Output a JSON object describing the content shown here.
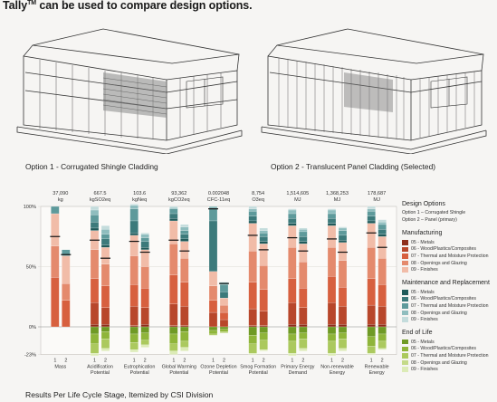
{
  "headline": {
    "brand": "Tally",
    "tm": "TM",
    "rest": " can be used to compare design options."
  },
  "options": {
    "option1_caption": "Option 1 - Corrugated Shingle Cladding",
    "option2_caption": "Option 2 - Translucent Panel Cladding (Selected)"
  },
  "footer_caption": "Results Per Life Cycle Stage, Itemized by CSI Division",
  "legend": {
    "design_title": "Design Options",
    "design_items": [
      "Option 1 – Corrugated Shingle",
      "Option 2 – Panel (primary)"
    ],
    "groups": [
      {
        "title": "Manufacturing",
        "items": [
          {
            "label": "05 - Metals",
            "color": "#8e2f1b"
          },
          {
            "label": "06 - Wood/Plastics/Composites",
            "color": "#b8472b"
          },
          {
            "label": "07 - Thermal and Moisture Protection",
            "color": "#d7603f"
          },
          {
            "label": "08 - Openings and Glazing",
            "color": "#e48a6d"
          },
          {
            "label": "09 - Finishes",
            "color": "#f1bca8"
          }
        ]
      },
      {
        "title": "Maintenance and Replacement",
        "items": [
          {
            "label": "05 - Metals",
            "color": "#1f5a5a"
          },
          {
            "label": "06 - Wood/Plastics/Composites",
            "color": "#3c7a7b"
          },
          {
            "label": "07 - Thermal and Moisture Protection",
            "color": "#5e9a9b"
          },
          {
            "label": "08 - Openings and Glazing",
            "color": "#8fbdbe"
          },
          {
            "label": "09 - Finishes",
            "color": "#c4dcdc"
          }
        ]
      },
      {
        "title": "End of Life",
        "items": [
          {
            "label": "05 - Metals",
            "color": "#6f9a25"
          },
          {
            "label": "06 - Wood/Plastics/Composites",
            "color": "#8fb53a"
          },
          {
            "label": "07 - Thermal and Moisture Protection",
            "color": "#abc95e"
          },
          {
            "label": "08 - Openings and Glazing",
            "color": "#c4da88"
          },
          {
            "label": "09 - Finishes",
            "color": "#dcebb6"
          }
        ]
      }
    ]
  },
  "chart_data": {
    "type": "bar",
    "stacked": true,
    "y_tick_labels": [
      "100%",
      "50%",
      "0%",
      "-23%"
    ],
    "ylim": [
      -23,
      100
    ],
    "categories": [
      {
        "name": [
          "Mass"
        ],
        "total": "37,090",
        "unit": "kg",
        "o1": {
          "m": [
            0,
            0,
            41,
            26,
            27
          ],
          "mr": [
            0,
            0,
            6,
            0,
            0
          ],
          "e": [
            0,
            0,
            0,
            0,
            0
          ]
        },
        "o2": {
          "m": [
            0,
            0,
            22,
            14,
            23
          ],
          "mr": [
            0,
            0,
            5,
            0,
            0
          ],
          "e": [
            0,
            0,
            0,
            0,
            0
          ]
        },
        "m1": 75,
        "m2": 60
      },
      {
        "name": [
          "Acidification",
          "Potential"
        ],
        "total": "667.5",
        "unit": "kgSO2eq",
        "o1": {
          "m": [
            2,
            18,
            20,
            24,
            16
          ],
          "mr": [
            2,
            5,
            6,
            4,
            3
          ],
          "e": [
            -6,
            -8,
            -8,
            0,
            -2
          ]
        },
        "o2": {
          "m": [
            2,
            14,
            18,
            18,
            14
          ],
          "mr": [
            2,
            5,
            4,
            4,
            3
          ],
          "e": [
            -4,
            -6,
            -8,
            0,
            -2
          ]
        },
        "m1": 72,
        "m2": 57
      },
      {
        "name": [
          "Eutrophication",
          "Potential"
        ],
        "total": "103.6",
        "unit": "kgNeq",
        "o1": {
          "m": [
            1,
            16,
            18,
            24,
            17
          ],
          "mr": [
            2,
            10,
            10,
            3,
            1
          ],
          "e": [
            -6,
            -7,
            -6,
            0,
            -2
          ]
        },
        "o2": {
          "m": [
            2,
            14,
            16,
            18,
            14
          ],
          "mr": [
            2,
            5,
            3,
            3,
            1
          ],
          "e": [
            -5,
            -6,
            -4,
            0,
            -2
          ]
        },
        "m1": 71,
        "m2": 62
      },
      {
        "name": [
          "Global Warming",
          "Potential"
        ],
        "total": "93,362",
        "unit": "kgCO2eq",
        "o1": {
          "m": [
            1,
            18,
            24,
            26,
            19
          ],
          "mr": [
            2,
            4,
            4,
            1,
            1
          ],
          "e": [
            -6,
            -8,
            -6,
            0,
            -3
          ]
        },
        "o2": {
          "m": [
            1,
            16,
            20,
            20,
            14
          ],
          "mr": [
            2,
            4,
            3,
            3,
            2
          ],
          "e": [
            -4,
            -8,
            -5,
            0,
            -3
          ]
        },
        "m1": 72,
        "m2": 63
      },
      {
        "name": [
          "Ozone Depletion",
          "Potential"
        ],
        "total": "0.002048",
        "unit": "CFC-11eq",
        "o1": {
          "m": [
            0,
            12,
            10,
            12,
            12
          ],
          "mr": [
            0,
            42,
            10,
            2,
            0
          ],
          "e": [
            -3,
            -3,
            -1,
            0,
            0
          ]
        },
        "o2": {
          "m": [
            0,
            6,
            6,
            6,
            6
          ],
          "mr": [
            0,
            5,
            6,
            2,
            0
          ],
          "e": [
            -2,
            -2,
            -1,
            0,
            0
          ]
        },
        "m1": 98,
        "m2": 36
      },
      {
        "name": [
          "Smog Formation",
          "Potential"
        ],
        "total": "8,754",
        "unit": "O3eq",
        "o1": {
          "m": [
            1,
            14,
            22,
            26,
            23
          ],
          "mr": [
            2,
            4,
            4,
            2,
            2
          ],
          "e": [
            -7,
            -7,
            -8,
            0,
            -1
          ]
        },
        "o2": {
          "m": [
            1,
            12,
            18,
            20,
            18
          ],
          "mr": [
            2,
            4,
            3,
            2,
            2
          ],
          "e": [
            -5,
            -6,
            -8,
            0,
            -1
          ]
        },
        "m1": 76,
        "m2": 64
      },
      {
        "name": [
          "Primary Energy",
          "Demand"
        ],
        "total": "1,514,605",
        "unit": "MJ",
        "o1": {
          "m": [
            2,
            18,
            20,
            26,
            18
          ],
          "mr": [
            2,
            4,
            4,
            3,
            1
          ],
          "e": [
            -6,
            -6,
            -10,
            0,
            -2
          ]
        },
        "o2": {
          "m": [
            2,
            14,
            16,
            22,
            15
          ],
          "mr": [
            2,
            4,
            4,
            2,
            1
          ],
          "e": [
            -5,
            -5,
            -8,
            0,
            -2
          ]
        },
        "m1": 74,
        "m2": 63
      },
      {
        "name": [
          "Non-renewable",
          "Energy"
        ],
        "total": "1,368,253",
        "unit": "MJ",
        "o1": {
          "m": [
            2,
            18,
            22,
            24,
            18
          ],
          "mr": [
            2,
            4,
            4,
            3,
            1
          ],
          "e": [
            -6,
            -6,
            -10,
            0,
            -2
          ]
        },
        "o2": {
          "m": [
            2,
            15,
            16,
            22,
            15
          ],
          "mr": [
            2,
            4,
            4,
            2,
            1
          ],
          "e": [
            -5,
            -5,
            -8,
            0,
            -2
          ]
        },
        "m1": 73,
        "m2": 62
      },
      {
        "name": [
          "Renewable",
          "Energy"
        ],
        "total": "178,687",
        "unit": "MJ",
        "o1": {
          "m": [
            2,
            16,
            22,
            26,
            20
          ],
          "mr": [
            2,
            4,
            4,
            2,
            2
          ],
          "e": [
            -8,
            -8,
            -6,
            0,
            -1
          ]
        },
        "o2": {
          "m": [
            2,
            15,
            18,
            22,
            18
          ],
          "mr": [
            2,
            4,
            4,
            2,
            2
          ],
          "e": [
            -6,
            -6,
            -6,
            0,
            -1
          ]
        },
        "m1": 78,
        "m2": 66
      }
    ]
  }
}
